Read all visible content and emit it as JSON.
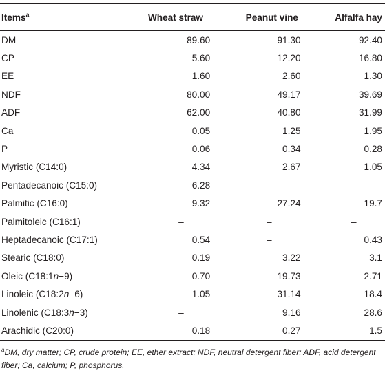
{
  "table": {
    "header": {
      "items_label": "Items",
      "items_sup": "a",
      "columns": [
        "Wheat straw",
        "Peanut vine",
        "Alfalfa hay"
      ]
    },
    "rows": [
      {
        "label": "DM",
        "values": [
          "89.60",
          "91.30",
          "92.40"
        ]
      },
      {
        "label": "CP",
        "values": [
          "5.60",
          "12.20",
          "16.80"
        ]
      },
      {
        "label": "EE",
        "values": [
          "1.60",
          "2.60",
          "1.30"
        ]
      },
      {
        "label": "NDF",
        "values": [
          "80.00",
          "49.17",
          "39.69"
        ]
      },
      {
        "label": "ADF",
        "values": [
          "62.00",
          "40.80",
          "31.99"
        ]
      },
      {
        "label": "Ca",
        "values": [
          "0.05",
          "1.25",
          "1.95"
        ]
      },
      {
        "label": "P",
        "values": [
          "0.06",
          "0.34",
          "0.28"
        ]
      },
      {
        "label": "Myristic (C14:0)",
        "values": [
          "4.34",
          "2.67",
          "1.05"
        ]
      },
      {
        "label": "Pentadecanoic (C15:0)",
        "values": [
          "6.28",
          "–",
          "–"
        ]
      },
      {
        "label": "Palmitic (C16:0)",
        "values": [
          "9.32",
          "27.24",
          "19.7"
        ]
      },
      {
        "label": "Palmitoleic (C16:1)",
        "values": [
          "–",
          "–",
          "–"
        ]
      },
      {
        "label": "Heptadecanoic (C17:1)",
        "values": [
          "0.54",
          "–",
          "0.43"
        ]
      },
      {
        "label": "Stearic (C18:0)",
        "values": [
          "0.19",
          "3.22",
          "3.1"
        ]
      },
      {
        "label": "Oleic (C18:1n−9)",
        "values": [
          "0.70",
          "19.73",
          "2.71"
        ]
      },
      {
        "label": "Linoleic (C18:2n−6)",
        "values": [
          "1.05",
          "31.14",
          "18.4"
        ]
      },
      {
        "label": "Linolenic (C18:3n−3)",
        "values": [
          "–",
          "9.16",
          "28.6"
        ]
      },
      {
        "label": "Arachidic (C20:0)",
        "values": [
          "0.18",
          "0.27",
          "1.5"
        ]
      }
    ]
  },
  "footnote": {
    "sup": "a",
    "text": "DM, dry matter; CP, crude protein; EE, ether extract; NDF, neutral detergent fiber; ADF, acid detergent fiber; Ca, calcium; P, phosphorus."
  }
}
